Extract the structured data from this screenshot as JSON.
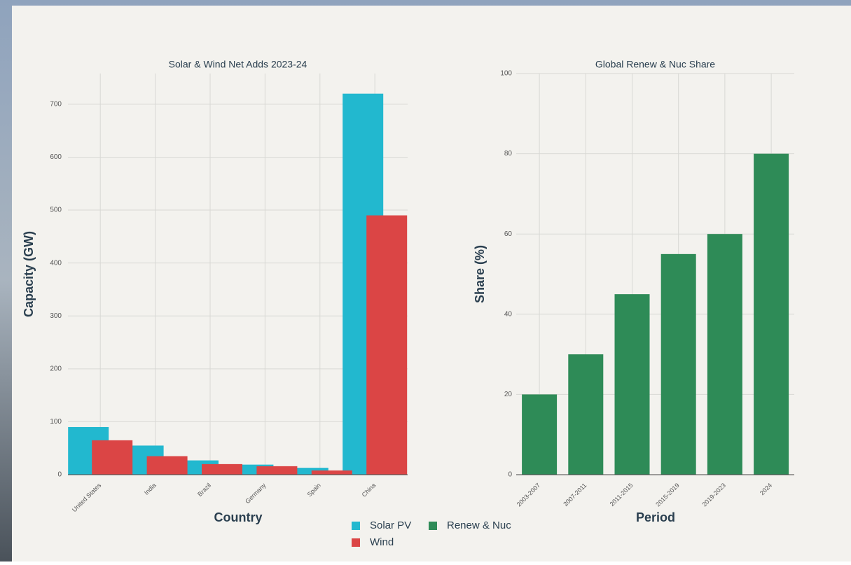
{
  "chart_data": [
    {
      "type": "bar",
      "title": "Solar & Wind Net Adds 2023-24",
      "x_label": "Country",
      "y_label": "Capacity (GW)",
      "categories": [
        "United States",
        "India",
        "Brazil",
        "Germany",
        "Spain",
        "China"
      ],
      "series": [
        {
          "name": "Solar PV",
          "color": "#22b8cf",
          "values": [
            90,
            55,
            27,
            19,
            13,
            720
          ]
        },
        {
          "name": "Wind",
          "color": "#db4545",
          "values": [
            65,
            35,
            20,
            16,
            8,
            490
          ]
        }
      ],
      "ylim": [
        0,
        758
      ],
      "yticks": [
        0,
        100,
        200,
        300,
        400,
        500,
        600,
        700
      ],
      "grid": true
    },
    {
      "type": "bar",
      "title": "Global Renew & Nuc Share",
      "x_label": "Period",
      "y_label": "Share (%)",
      "categories": [
        "2003-2007",
        "2007-2011",
        "2011-2015",
        "2015-2019",
        "2019-2023",
        "2024"
      ],
      "series": [
        {
          "name": "Renew & Nuc",
          "color": "#2e8b57",
          "values": [
            20,
            30,
            45,
            55,
            60,
            80
          ]
        }
      ],
      "ylim": [
        0,
        100
      ],
      "yticks": [
        0,
        20,
        40,
        60,
        80,
        100
      ],
      "grid": true
    }
  ]
}
